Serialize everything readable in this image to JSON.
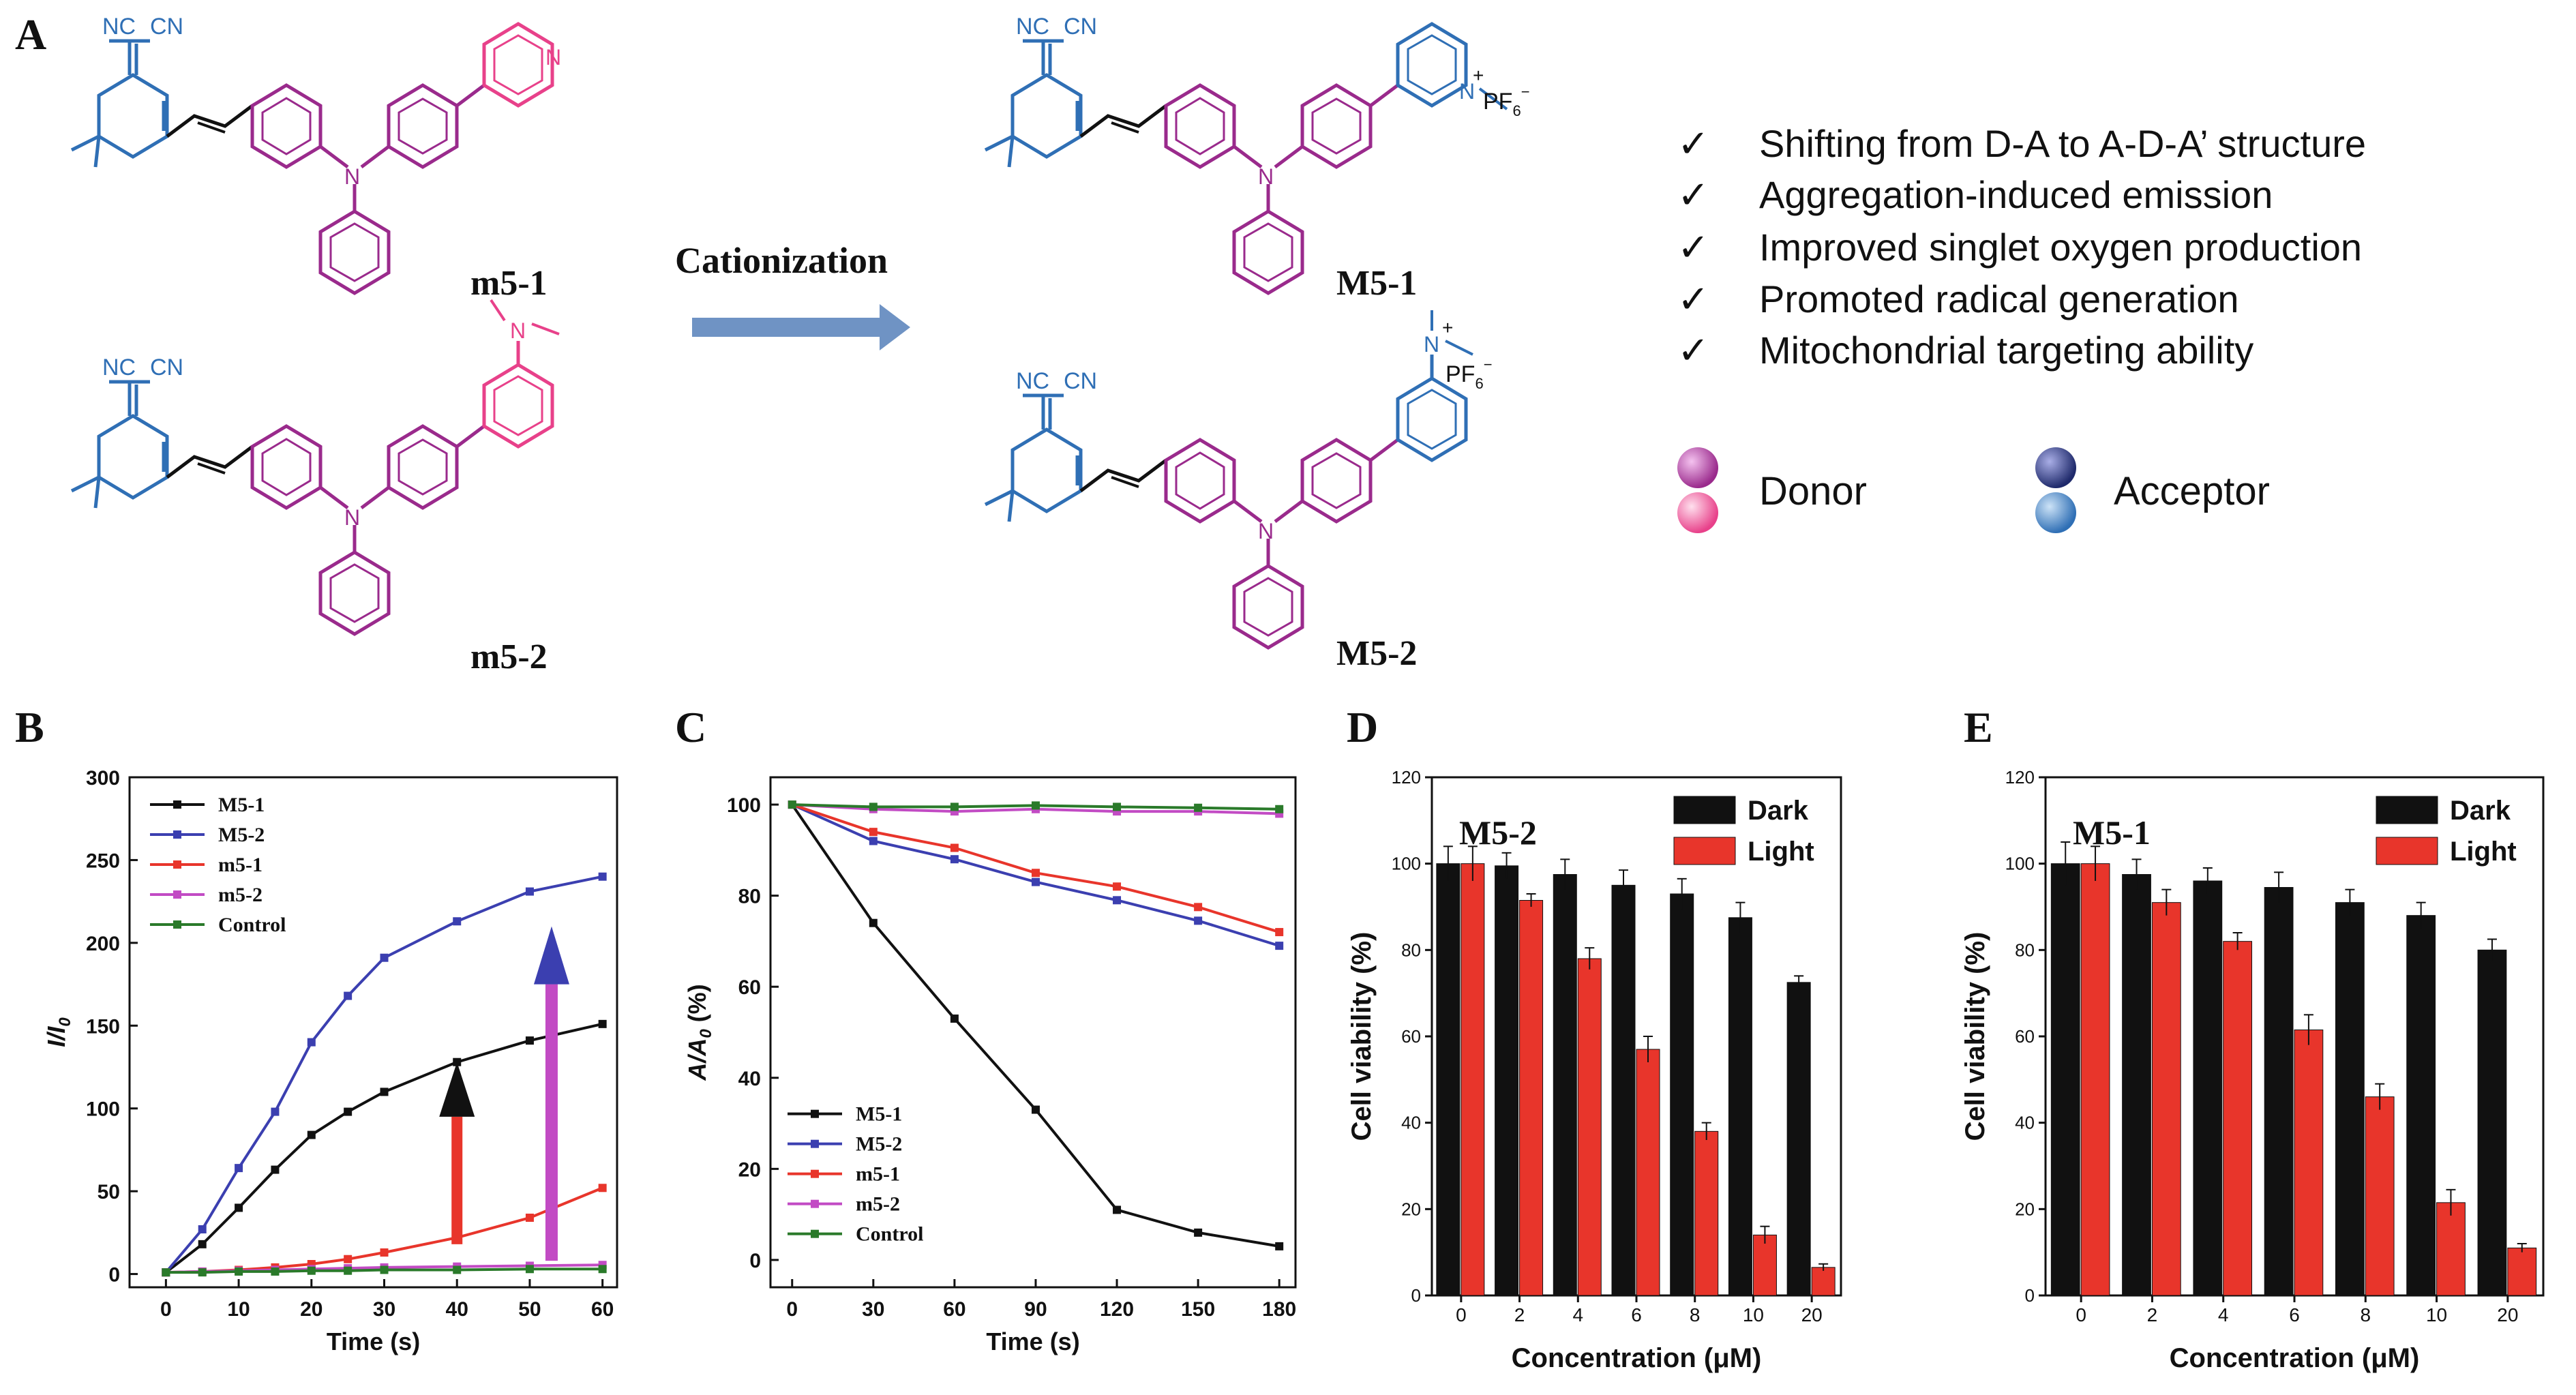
{
  "panels": {
    "A": "A",
    "B": "B",
    "C": "C",
    "D": "D",
    "E": "E"
  },
  "scheme": {
    "arrow_label": "Cationization",
    "compounds": {
      "m5_1": "m5-1",
      "m5_2": "m5-2",
      "M5_1": "M5-1",
      "M5_2": "M5-2"
    },
    "atoms": {
      "nc": "NC",
      "cn": "CN",
      "n": "N",
      "n_plus": "N",
      "plus": "+",
      "pf6": "PF",
      "pf6_sub": "6",
      "pf6_sup": "−"
    },
    "features": [
      "Shifting from D-A to A-D-A’ structure",
      "Aggregation-induced emission",
      "Improved singlet oxygen production",
      "Promoted radical generation",
      "Mitochondrial targeting ability"
    ],
    "check": "✓",
    "legend": {
      "donor": "Donor",
      "acceptor": "Acceptor"
    },
    "colors": {
      "acceptor": "#2f6fb5",
      "donor": "#9a2a8c",
      "donor_light": "#e8418a",
      "acceptor_dark": "#1f2a6b",
      "arrow": "#6f93c4"
    }
  },
  "chart_data": [
    {
      "id": "B",
      "type": "line",
      "xlabel": "Time (s)",
      "ylabel": "I/I",
      "ylabel_sub": "0",
      "xlim": [
        -5,
        62
      ],
      "ylim": [
        -8,
        300
      ],
      "xticks": [
        0,
        10,
        20,
        30,
        40,
        50,
        60
      ],
      "yticks": [
        0,
        50,
        100,
        150,
        200,
        250,
        300
      ],
      "x": [
        0,
        5,
        10,
        15,
        20,
        25,
        30,
        40,
        50,
        60
      ],
      "series": [
        {
          "name": "M5-1",
          "color": "#111111",
          "values": [
            1,
            18,
            40,
            63,
            84,
            98,
            110,
            128,
            141,
            151
          ]
        },
        {
          "name": "M5-2",
          "color": "#3b3fb0",
          "values": [
            1,
            27,
            64,
            98,
            140,
            168,
            191,
            213,
            231,
            240
          ]
        },
        {
          "name": "m5-1",
          "color": "#e8352b",
          "values": [
            1,
            1.5,
            2.5,
            4,
            6,
            9,
            13,
            22,
            34,
            52
          ]
        },
        {
          "name": "m5-2",
          "color": "#c24bc4",
          "values": [
            1,
            1.5,
            2,
            2.5,
            3,
            3.5,
            4,
            4.5,
            5,
            5.5
          ]
        },
        {
          "name": "Control",
          "color": "#2a7a2a",
          "values": [
            1,
            1,
            1.5,
            1.5,
            2,
            2,
            2.5,
            2.5,
            3,
            3
          ]
        }
      ],
      "legend": "top-left"
    },
    {
      "id": "C",
      "type": "line",
      "xlabel": "Time (s)",
      "ylabel": "A/A",
      "ylabel_sub": "0",
      "ylabel_unit": " (%)",
      "xlim": [
        -8,
        186
      ],
      "ylim": [
        -6,
        106
      ],
      "xticks": [
        0,
        30,
        60,
        90,
        120,
        150,
        180
      ],
      "yticks": [
        0,
        20,
        40,
        60,
        80,
        100
      ],
      "x": [
        0,
        30,
        60,
        90,
        120,
        150,
        180
      ],
      "series": [
        {
          "name": "M5-1",
          "color": "#111111",
          "values": [
            100,
            74,
            53,
            33,
            11,
            6,
            3
          ]
        },
        {
          "name": "M5-2",
          "color": "#3b3fb0",
          "values": [
            100,
            92,
            88,
            83,
            79,
            74.5,
            69
          ]
        },
        {
          "name": "m5-1",
          "color": "#e8352b",
          "values": [
            100,
            94,
            90.5,
            85,
            82,
            77.5,
            72
          ]
        },
        {
          "name": "m5-2",
          "color": "#c24bc4",
          "values": [
            100,
            99,
            98.5,
            99,
            98.5,
            98.5,
            98
          ]
        },
        {
          "name": "Control",
          "color": "#2a7a2a",
          "values": [
            100,
            99.5,
            99.5,
            99.8,
            99.5,
            99.3,
            99
          ]
        }
      ],
      "legend": "bottom-left"
    },
    {
      "id": "D",
      "type": "bar",
      "title": "M5-2",
      "xlabel": "Concentration (μM)",
      "ylabel": "Cell viability (%)",
      "ylim": [
        0,
        120
      ],
      "yticks": [
        0,
        20,
        40,
        60,
        80,
        100,
        120
      ],
      "categories": [
        "0",
        "2",
        "4",
        "6",
        "8",
        "10",
        "20"
      ],
      "series": [
        {
          "name": "Dark",
          "color": "#111111",
          "values": [
            100,
            99.5,
            97.5,
            95,
            93,
            87.5,
            72.5
          ],
          "errors": [
            4,
            3,
            3.5,
            3.5,
            3.5,
            3.5,
            1.5
          ]
        },
        {
          "name": "Light",
          "color": "#e8352b",
          "values": [
            100,
            91.5,
            78,
            57,
            38,
            14,
            6.5
          ],
          "errors": [
            4,
            1.5,
            2.5,
            3,
            2,
            2,
            0.8
          ]
        }
      ],
      "legend": "top-right"
    },
    {
      "id": "E",
      "type": "bar",
      "title": "M5-1",
      "xlabel": "Concentration (μM)",
      "ylabel": "Cell viability (%)",
      "ylim": [
        0,
        120
      ],
      "yticks": [
        0,
        20,
        40,
        60,
        80,
        100,
        120
      ],
      "categories": [
        "0",
        "2",
        "4",
        "6",
        "8",
        "10",
        "20"
      ],
      "series": [
        {
          "name": "Dark",
          "color": "#111111",
          "values": [
            100,
            97.5,
            96,
            94.5,
            91,
            88,
            80
          ],
          "errors": [
            5,
            3.5,
            3,
            3.5,
            3,
            3,
            2.5
          ]
        },
        {
          "name": "Light",
          "color": "#e8352b",
          "values": [
            100,
            91,
            82,
            61.5,
            46,
            21.5,
            11
          ],
          "errors": [
            4,
            3,
            2,
            3.5,
            3,
            3,
            1
          ]
        }
      ],
      "legend": "top-right"
    }
  ]
}
